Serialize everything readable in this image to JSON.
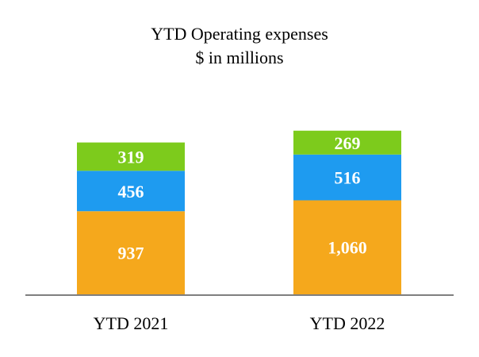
{
  "chart_data": {
    "type": "bar",
    "stacked": true,
    "title": "YTD Operating expenses",
    "subtitle": "$ in millions",
    "categories": [
      "YTD 2021",
      "YTD 2022"
    ],
    "series": [
      {
        "color": "#F5A81C",
        "values": [
          937,
          1060
        ],
        "labels": [
          "937",
          "1,060"
        ]
      },
      {
        "color": "#1E9BF0",
        "values": [
          456,
          516
        ],
        "labels": [
          "456",
          "516"
        ]
      },
      {
        "color": "#7DCB1C",
        "values": [
          319,
          269
        ],
        "labels": [
          "319",
          "269"
        ]
      }
    ],
    "ylim": [
      0,
      1950
    ],
    "grid": false,
    "legend": "none",
    "axis_color": "#7F7F7F"
  }
}
